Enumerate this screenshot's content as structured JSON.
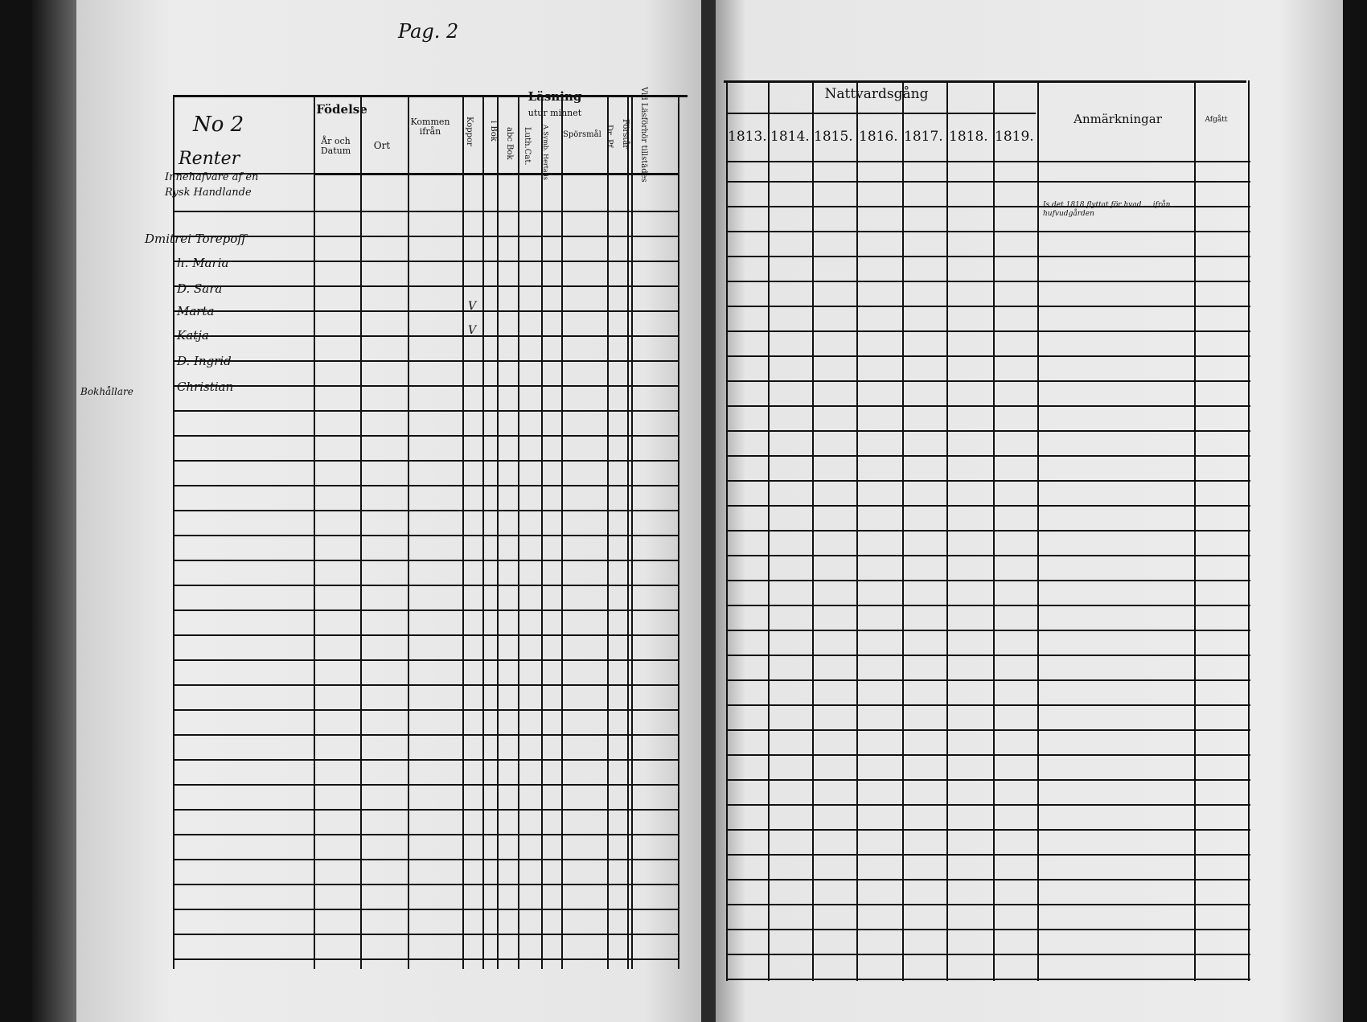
{
  "page_label": "Pag. 2",
  "left": {
    "household_no": "No 2",
    "household_title": "Renter",
    "household_desc_1": "Innehafvare af en",
    "household_desc_2": "Rysk Handlande",
    "margin_note": "Bokhållare",
    "headers": {
      "fodelse": "Födelse",
      "ar_och_datum": "År och Datum",
      "ort": "Ort",
      "kommen_ifran": "Kommen ifrån",
      "koppor": "Koppor",
      "lasning": "Läsning",
      "utur_minnet": "utur minnet",
      "i_bok": "i Bok",
      "abc_bok": "abc Bok",
      "luth_cat": "Luth.Cat.",
      "a_symb": "A.Symb. Hertalis",
      "sporsmal": "Spörsmål",
      "dr_pf": "Dr. Pf.",
      "forstar": "Förstår",
      "vid_lasforhor": "Vid Läsförhör tillstädes"
    },
    "persons": [
      "Dmitrei Torepoff",
      "h. Maria",
      "D. Sara",
      "Marta",
      "Katja",
      "D. Ingrid",
      "Christian"
    ],
    "koppor_marks": [
      "",
      "",
      "",
      "V",
      "V",
      "",
      ""
    ]
  },
  "right": {
    "nattvardsgang": "Nattvardsgång",
    "years": [
      "1813.",
      "1814.",
      "1815.",
      "1816.",
      "1817.",
      "1818.",
      "1819."
    ],
    "anmarkningar": "Anmärkningar",
    "afgatt": "Afgått",
    "remark": "Is det 1818 flyttat för hvad ... ifrån hufvudgården"
  }
}
